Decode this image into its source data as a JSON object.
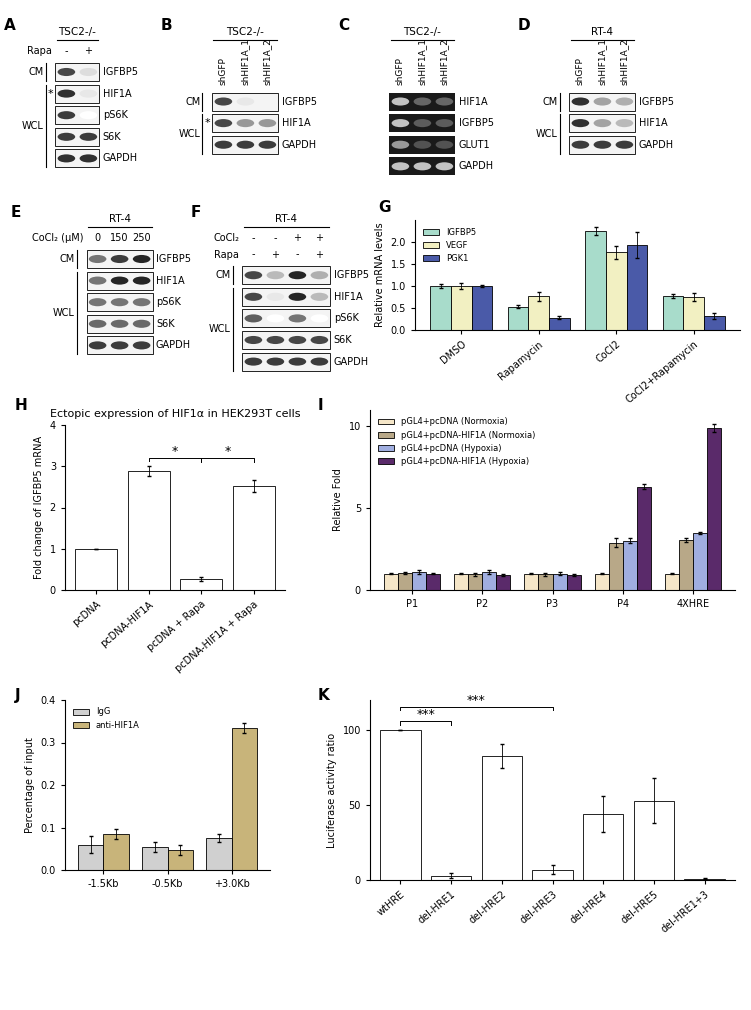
{
  "blots": [
    {
      "panel": "A",
      "header": "TSC2-/-",
      "gel": false,
      "condition_rows": [
        {
          "label": "Rapa",
          "values": [
            "-",
            "+"
          ]
        }
      ],
      "groups": [
        {
          "label": "CM",
          "rows": [
            0
          ]
        },
        {
          "label": "WCL",
          "rows": [
            1,
            2,
            3,
            4
          ]
        }
      ],
      "rows": [
        {
          "label": "IGFBP5",
          "bands": [
            0.8,
            0.15
          ]
        },
        {
          "label": "HIF1A",
          "note": "*",
          "bands": [
            0.9,
            0.1
          ]
        },
        {
          "label": "pS6K",
          "bands": [
            0.85,
            0.0
          ]
        },
        {
          "label": "S6K",
          "bands": [
            0.85,
            0.85
          ]
        },
        {
          "label": "GAPDH",
          "bands": [
            0.9,
            0.9
          ]
        }
      ]
    },
    {
      "panel": "B",
      "header": "TSC2-/-",
      "gel": false,
      "lane_labels": [
        "shGFP",
        "shHIF1A_1",
        "shHIF1A_2"
      ],
      "groups": [
        {
          "label": "CM",
          "rows": [
            0
          ]
        },
        {
          "label": "WCL",
          "rows": [
            1,
            2
          ]
        }
      ],
      "rows": [
        {
          "label": "IGFBP5",
          "bands": [
            0.8,
            0.1,
            0.05
          ]
        },
        {
          "label": "HIF1A",
          "note": "*",
          "bands": [
            0.8,
            0.45,
            0.45
          ]
        },
        {
          "label": "GAPDH",
          "bands": [
            0.85,
            0.85,
            0.85
          ]
        }
      ]
    },
    {
      "panel": "C",
      "header": "TSC2-/-",
      "gel": true,
      "lane_labels": [
        "shGFP",
        "shHIF1A_1",
        "shHIF1A_2"
      ],
      "rows": [
        {
          "label": "HIF1A",
          "bands": [
            0.8,
            0.35,
            0.35
          ]
        },
        {
          "label": "IGFBP5",
          "bands": [
            0.8,
            0.3,
            0.3
          ]
        },
        {
          "label": "GLUT1",
          "bands": [
            0.6,
            0.25,
            0.25
          ]
        },
        {
          "label": "GAPDH",
          "bands": [
            0.8,
            0.8,
            0.8
          ]
        }
      ]
    },
    {
      "panel": "D",
      "header": "RT-4",
      "gel": false,
      "lane_labels": [
        "shGFP",
        "shHIF1A_1",
        "shHIF1A_2"
      ],
      "groups": [
        {
          "label": "CM",
          "rows": [
            0
          ]
        },
        {
          "label": "WCL",
          "rows": [
            1,
            2
          ]
        }
      ],
      "rows": [
        {
          "label": "IGFBP5",
          "bands": [
            0.9,
            0.4,
            0.35
          ]
        },
        {
          "label": "HIF1A",
          "bands": [
            0.9,
            0.4,
            0.3
          ]
        },
        {
          "label": "GAPDH",
          "bands": [
            0.85,
            0.85,
            0.85
          ]
        }
      ]
    },
    {
      "panel": "E",
      "header": "RT-4",
      "gel": false,
      "condition_rows": [
        {
          "label": "CoCl₂ (μM)",
          "values": [
            "0",
            "150",
            "250"
          ]
        }
      ],
      "groups": [
        {
          "label": "CM",
          "rows": [
            0
          ]
        },
        {
          "label": "WCL",
          "rows": [
            1,
            2,
            3,
            4
          ]
        }
      ],
      "rows": [
        {
          "label": "IGFBP5",
          "bands": [
            0.6,
            0.85,
            0.95
          ]
        },
        {
          "label": "HIF1A",
          "bands": [
            0.6,
            0.95,
            0.95
          ]
        },
        {
          "label": "pS6K",
          "bands": [
            0.6,
            0.6,
            0.6
          ]
        },
        {
          "label": "S6K",
          "bands": [
            0.65,
            0.65,
            0.65
          ]
        },
        {
          "label": "GAPDH",
          "bands": [
            0.85,
            0.85,
            0.85
          ]
        }
      ]
    },
    {
      "panel": "F",
      "header": "RT-4",
      "gel": false,
      "condition_rows": [
        {
          "label": "CoCl₂",
          "values": [
            "-",
            "-",
            "+",
            "+"
          ]
        },
        {
          "label": "Rapa",
          "values": [
            "-",
            "+",
            "-",
            "+"
          ]
        }
      ],
      "groups": [
        {
          "label": "CM",
          "rows": [
            0
          ]
        },
        {
          "label": "WCL",
          "rows": [
            1,
            2,
            3,
            4
          ]
        }
      ],
      "rows": [
        {
          "label": "IGFBP5",
          "bands": [
            0.8,
            0.3,
            0.95,
            0.35
          ]
        },
        {
          "label": "HIF1A",
          "bands": [
            0.8,
            0.1,
            0.95,
            0.3
          ]
        },
        {
          "label": "pS6K",
          "bands": [
            0.7,
            0.0,
            0.6,
            0.0
          ]
        },
        {
          "label": "S6K",
          "bands": [
            0.8,
            0.8,
            0.8,
            0.8
          ]
        },
        {
          "label": "GAPDH",
          "bands": [
            0.85,
            0.85,
            0.85,
            0.85
          ]
        }
      ]
    }
  ],
  "chart_data": [
    {
      "panel": "G",
      "type": "bar",
      "ylabel": "Relative mRNA levels",
      "categories": [
        "DMSO",
        "Rapamycin",
        "CoCl2",
        "CoCl2+Rapamycin"
      ],
      "series": [
        {
          "name": "IGFBP5",
          "color": "#a8dccb",
          "values": [
            1.0,
            0.53,
            2.25,
            0.77
          ],
          "errors": [
            0.04,
            0.03,
            0.1,
            0.04
          ]
        },
        {
          "name": "VEGF",
          "color": "#f2f0c2",
          "values": [
            1.0,
            0.77,
            1.77,
            0.75
          ],
          "errors": [
            0.06,
            0.1,
            0.15,
            0.08
          ]
        },
        {
          "name": "PGK1",
          "color": "#4a5aa8",
          "values": [
            1.0,
            0.28,
            1.93,
            0.32
          ],
          "errors": [
            0.03,
            0.03,
            0.3,
            0.07
          ]
        }
      ],
      "ylim": [
        0,
        2.5
      ],
      "yticks": [
        0.0,
        0.5,
        1.0,
        1.5,
        2.0
      ],
      "legend": "upper left"
    },
    {
      "panel": "H",
      "type": "bar",
      "title": "Ectopic expression of HIF1α in HEK293T cells",
      "ylabel": "Fold change of IGFBP5 mRNA",
      "categories": [
        "pcDNA",
        "pcDNA-HIF1A",
        "pcDNA + Rapa",
        "pcDNA-HIF1A + Rapa"
      ],
      "values": [
        1,
        2.88,
        0.27,
        2.52
      ],
      "errors": [
        0,
        0.12,
        0.05,
        0.15
      ],
      "color": "#ffffff",
      "ylim": [
        0,
        4
      ],
      "yticks": [
        0,
        1,
        2,
        3,
        4
      ],
      "annotations": [
        {
          "from": "pcDNA-HIF1A",
          "to": "pcDNA + Rapa",
          "text": "*"
        },
        {
          "from": "pcDNA + Rapa",
          "to": "pcDNA-HIF1A + Rapa",
          "text": "*"
        }
      ]
    },
    {
      "panel": "I",
      "type": "bar",
      "ylabel": "Relative Fold",
      "categories": [
        "P1",
        "P2",
        "P3",
        "P4",
        "4XHRE"
      ],
      "series": [
        {
          "name": "pGL4+pcDNA (Normoxia)",
          "color": "#f5e6c8",
          "values": [
            1,
            1,
            1,
            1,
            1
          ],
          "errors": [
            0.02,
            0.02,
            0.02,
            0.02,
            0.02
          ]
        },
        {
          "name": "pGL4+pcDNA-HIF1A (Normoxia)",
          "color": "#b8a888",
          "values": [
            1.05,
            0.95,
            0.95,
            2.9,
            3.05
          ],
          "errors": [
            0.05,
            0.1,
            0.1,
            0.3,
            0.1
          ]
        },
        {
          "name": "pGL4+pcDNA (Hypoxia)",
          "color": "#a0aee0",
          "values": [
            1.1,
            1.1,
            1.0,
            3.0,
            3.5
          ],
          "errors": [
            0.1,
            0.1,
            0.1,
            0.15,
            0.05
          ]
        },
        {
          "name": "pGL4+pcDNA-HIF1A (Hypoxia)",
          "color": "#5a2a6a",
          "values": [
            1.0,
            0.9,
            0.9,
            6.3,
            9.9
          ],
          "errors": [
            0.05,
            0.05,
            0.05,
            0.15,
            0.25
          ]
        }
      ],
      "ylim": [
        0,
        11
      ],
      "yticks": [
        0,
        5,
        10
      ],
      "legend": "upper left"
    },
    {
      "panel": "J",
      "type": "bar",
      "ylabel": "Percentage of input",
      "categories": [
        "-1.5Kb",
        "-0.5Kb",
        "+3.0Kb"
      ],
      "series": [
        {
          "name": "IgG",
          "color": "#d0d0d0",
          "values": [
            0.06,
            0.055,
            0.075
          ],
          "errors": [
            0.02,
            0.012,
            0.01
          ]
        },
        {
          "name": "anti-HIF1A",
          "color": "#c8b47a",
          "values": [
            0.085,
            0.048,
            0.335
          ],
          "errors": [
            0.012,
            0.012,
            0.012
          ]
        }
      ],
      "ylim": [
        0,
        0.4
      ],
      "yticks": [
        0.0,
        0.1,
        0.2,
        0.3,
        0.4
      ],
      "legend": "upper left"
    },
    {
      "panel": "K",
      "type": "bar",
      "ylabel": "Luciferase activity ratio",
      "categories": [
        "wtHRE",
        "del-HRE1",
        "del-HRE2",
        "del-HRE3",
        "del-HRE4",
        "del-HRE5",
        "del-HRE1+3"
      ],
      "values": [
        100,
        3,
        83,
        7,
        44,
        53,
        1
      ],
      "errors": [
        0,
        1.5,
        8,
        3,
        12,
        15,
        0.5
      ],
      "color": "#ffffff",
      "ylim": [
        0,
        120
      ],
      "yticks": [
        0,
        50,
        100
      ],
      "annotations": [
        {
          "from": "wtHRE",
          "to": "del-HRE1",
          "text": "***"
        },
        {
          "from": "wtHRE",
          "to": "del-HRE3",
          "text": "***"
        }
      ]
    }
  ]
}
